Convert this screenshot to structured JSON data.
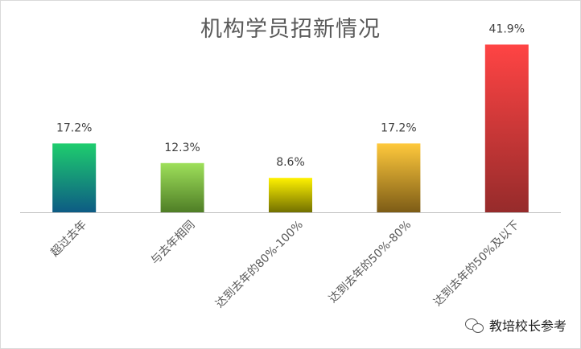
{
  "chart_data": {
    "type": "bar",
    "title": "机构学员招新情况",
    "categories": [
      "超过去年",
      "与去年相同",
      "达到去年的80%-100%",
      "达到去年的50%-80%",
      "达到去年的50%及以下"
    ],
    "values": [
      17.2,
      12.3,
      8.6,
      17.2,
      41.9
    ],
    "data_labels": [
      "17.2%",
      "12.3%",
      "8.6%",
      "17.2%",
      "41.9%"
    ],
    "xlabel": "",
    "ylabel": "",
    "ylim": [
      0,
      45
    ],
    "grid": false,
    "legend": "none",
    "colors": [
      {
        "top": "#1ecd6e",
        "bottom": "#0d5b84"
      },
      {
        "top": "#9ee05a",
        "bottom": "#4f7e26"
      },
      {
        "top": "#fff200",
        "bottom": "#727000"
      },
      {
        "top": "#ffc93c",
        "bottom": "#7d5c16"
      },
      {
        "top": "#ff4444",
        "bottom": "#962b2b"
      }
    ]
  },
  "watermark": {
    "icon": "wechat-icon",
    "text": "教培校长参考"
  }
}
